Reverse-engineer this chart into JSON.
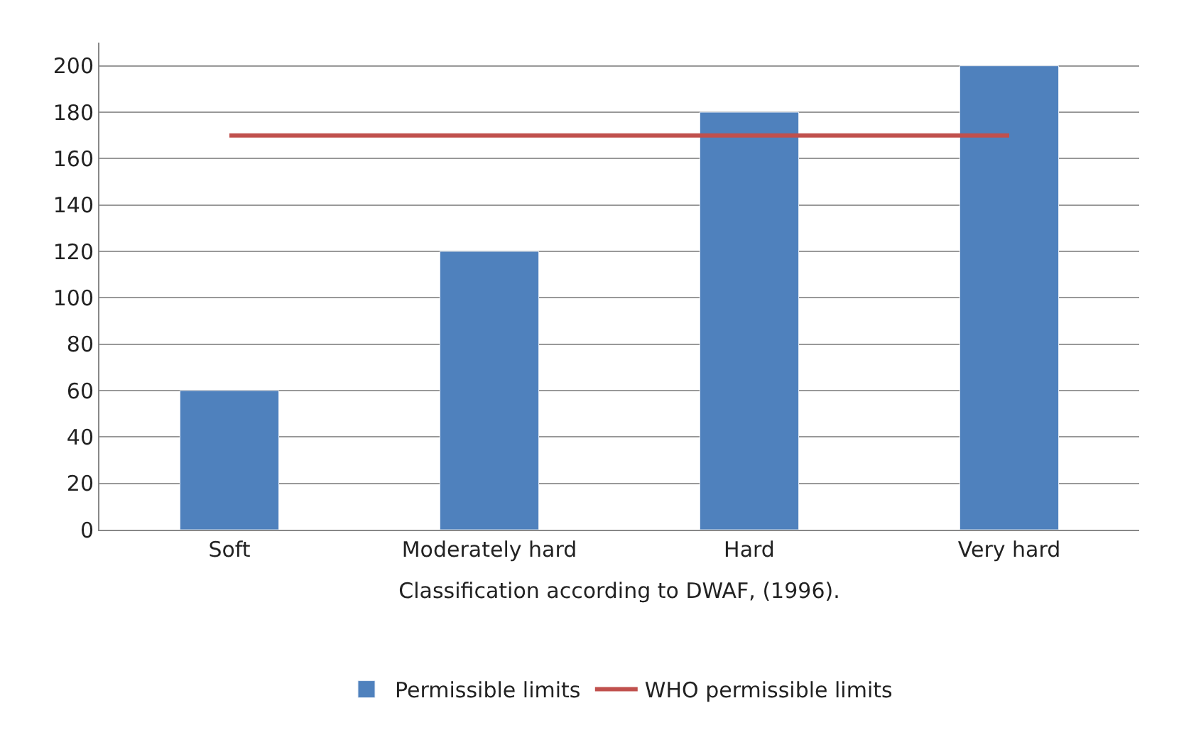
{
  "chart_data": {
    "type": "bar",
    "xlabel": "Classification according to DWAF, (1996).",
    "categories": [
      "Soft",
      "Moderately hard",
      "Hard",
      "Very hard"
    ],
    "series": [
      {
        "name": "Permissible limits",
        "color": "#4f81bd",
        "values": [
          60,
          120,
          180,
          200
        ]
      },
      {
        "name": "WHO permissible limits",
        "color": "#c0504d",
        "type": "line",
        "values": [
          170,
          170,
          170,
          170
        ]
      }
    ],
    "ylim": [
      0,
      210
    ],
    "yticks": [
      0,
      20,
      40,
      60,
      80,
      100,
      120,
      140,
      160,
      180,
      200
    ],
    "grid": "y",
    "legend": "bottom",
    "marker": "none"
  }
}
